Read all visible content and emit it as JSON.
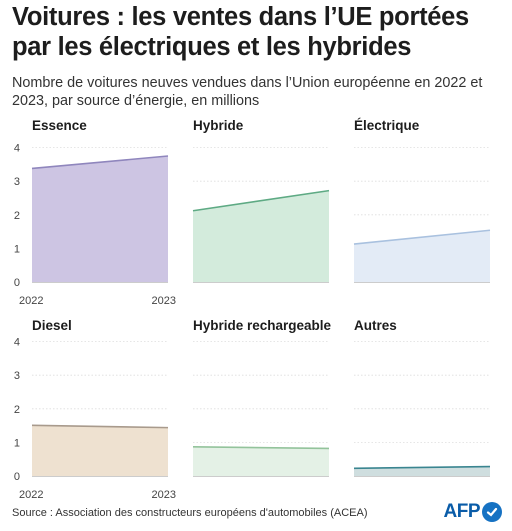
{
  "header": {
    "title": "Voitures : les ventes dans l’UE portées par les électriques et les hybrides",
    "subtitle": "Nombre de voitures neuves vendues dans l’Union européenne en 2022 et 2023, par source d’énergie, en millions"
  },
  "footer": {
    "source": "Source : Association des constructeurs européens d'automobiles (ACEA)",
    "logo_text": "AFP"
  },
  "chart_data": [
    {
      "type": "area",
      "title": "Essence",
      "x": [
        "2022",
        "2023"
      ],
      "values": [
        3.38,
        3.75
      ],
      "ylim": [
        0,
        4
      ],
      "yticks": [
        0,
        1,
        2,
        3,
        4
      ],
      "fill": "#cdc5e3",
      "stroke": "#8f86bd"
    },
    {
      "type": "area",
      "title": "Hybride",
      "x": [
        "2022",
        "2023"
      ],
      "values": [
        2.12,
        2.72
      ],
      "ylim": [
        0,
        4
      ],
      "yticks": [
        0,
        1,
        2,
        3,
        4
      ],
      "fill": "#d3ebdc",
      "stroke": "#5eaa84"
    },
    {
      "type": "area",
      "title": "Électrique",
      "x": [
        "2022",
        "2023"
      ],
      "values": [
        1.13,
        1.54
      ],
      "ylim": [
        0,
        4
      ],
      "yticks": [
        0,
        1,
        2,
        3,
        4
      ],
      "fill": "#e3ebf6",
      "stroke": "#a9c1df"
    },
    {
      "type": "area",
      "title": "Diesel",
      "x": [
        "2022",
        "2023"
      ],
      "values": [
        1.51,
        1.44
      ],
      "ylim": [
        0,
        4
      ],
      "yticks": [
        0,
        1,
        2,
        3,
        4
      ],
      "fill": "#eee1d0",
      "stroke": "#a89a8c"
    },
    {
      "type": "area",
      "title": "Hybride rechargeable",
      "x": [
        "2022",
        "2023"
      ],
      "values": [
        0.87,
        0.82
      ],
      "ylim": [
        0,
        4
      ],
      "yticks": [
        0,
        1,
        2,
        3,
        4
      ],
      "fill": "#e4f1e6",
      "stroke": "#93c39b"
    },
    {
      "type": "area",
      "title": "Autres",
      "x": [
        "2022",
        "2023"
      ],
      "values": [
        0.23,
        0.28
      ],
      "ylim": [
        0,
        4
      ],
      "yticks": [
        0,
        1,
        2,
        3,
        4
      ],
      "fill": "#cfdedf",
      "stroke": "#3a8590"
    }
  ]
}
